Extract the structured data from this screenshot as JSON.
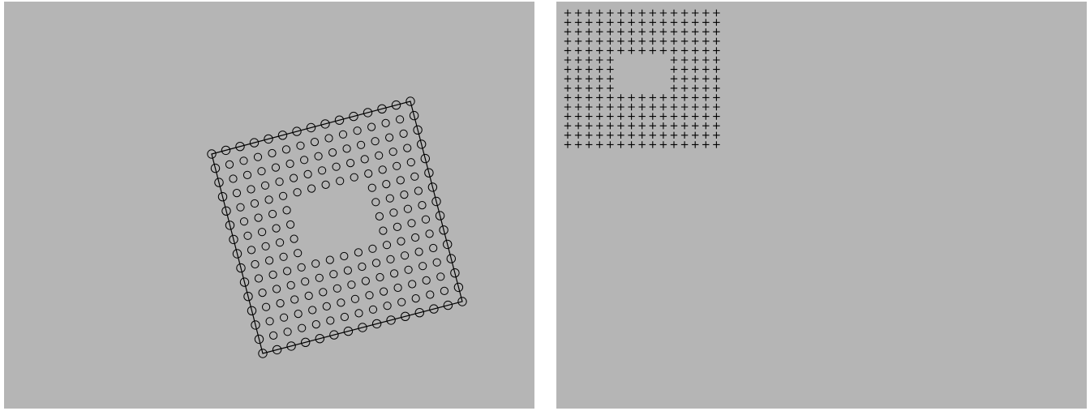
{
  "colors": {
    "background": "#b5b5b5",
    "page": "#ffffff",
    "stroke": "#000000"
  },
  "left_view": {
    "mark_shape": "circle",
    "grid_columns": 15,
    "grid_rows": 15,
    "hole": {
      "row_start": 5,
      "row_end": 8,
      "col_start": 5,
      "col_end": 9
    },
    "outline": "rotated-square"
  },
  "right_view": {
    "mark_shape": "plus",
    "grid_columns": 15,
    "grid_rows": 15,
    "hole": {
      "row_start": 5,
      "row_end": 8,
      "col_start": 5,
      "col_end": 9
    }
  }
}
